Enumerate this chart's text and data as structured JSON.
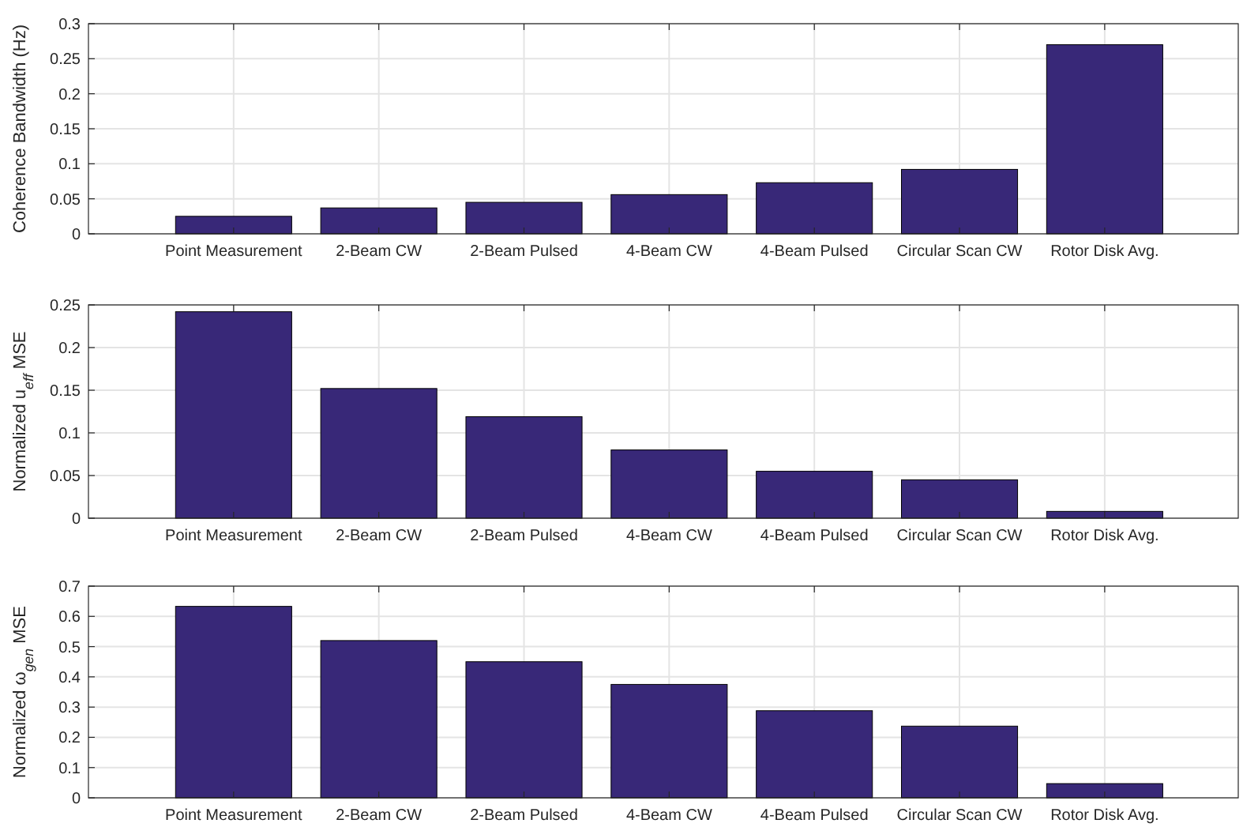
{
  "chart_data": [
    {
      "type": "bar",
      "ylabel": "Coherence Bandwidth (Hz)",
      "categories": [
        "Point Measurement",
        "2-Beam CW",
        "2-Beam Pulsed",
        "4-Beam CW",
        "4-Beam Pulsed",
        "Circular Scan CW",
        "Rotor Disk Avg."
      ],
      "values": [
        0.025,
        0.037,
        0.045,
        0.056,
        0.073,
        0.092,
        0.27
      ],
      "color": "#382878",
      "ylim": [
        0,
        0.3
      ],
      "yticks": [
        0,
        0.05,
        0.1,
        0.15,
        0.2,
        0.25,
        0.3
      ],
      "grid": true
    },
    {
      "type": "bar",
      "ylabel": "Normalized u$_{eff}$ MSE",
      "categories": [
        "Point Measurement",
        "2-Beam CW",
        "2-Beam Pulsed",
        "4-Beam CW",
        "4-Beam Pulsed",
        "Circular Scan CW",
        "Rotor Disk Avg."
      ],
      "values": [
        0.242,
        0.152,
        0.119,
        0.08,
        0.055,
        0.045,
        0.008
      ],
      "color": "#382878",
      "ylim": [
        0,
        0.25
      ],
      "yticks": [
        0,
        0.05,
        0.1,
        0.15,
        0.2,
        0.25
      ],
      "grid": true
    },
    {
      "type": "bar",
      "ylabel": "Normalized ω$_{gen}$ MSE",
      "categories": [
        "Point Measurement",
        "2-Beam CW",
        "2-Beam Pulsed",
        "4-Beam CW",
        "4-Beam Pulsed",
        "Circular Scan CW",
        "Rotor Disk Avg."
      ],
      "values": [
        0.633,
        0.52,
        0.45,
        0.375,
        0.288,
        0.237,
        0.047
      ],
      "color": "#382878",
      "ylim": [
        0,
        0.7
      ],
      "yticks": [
        0,
        0.1,
        0.2,
        0.3,
        0.4,
        0.5,
        0.6,
        0.7
      ],
      "grid": true
    }
  ]
}
